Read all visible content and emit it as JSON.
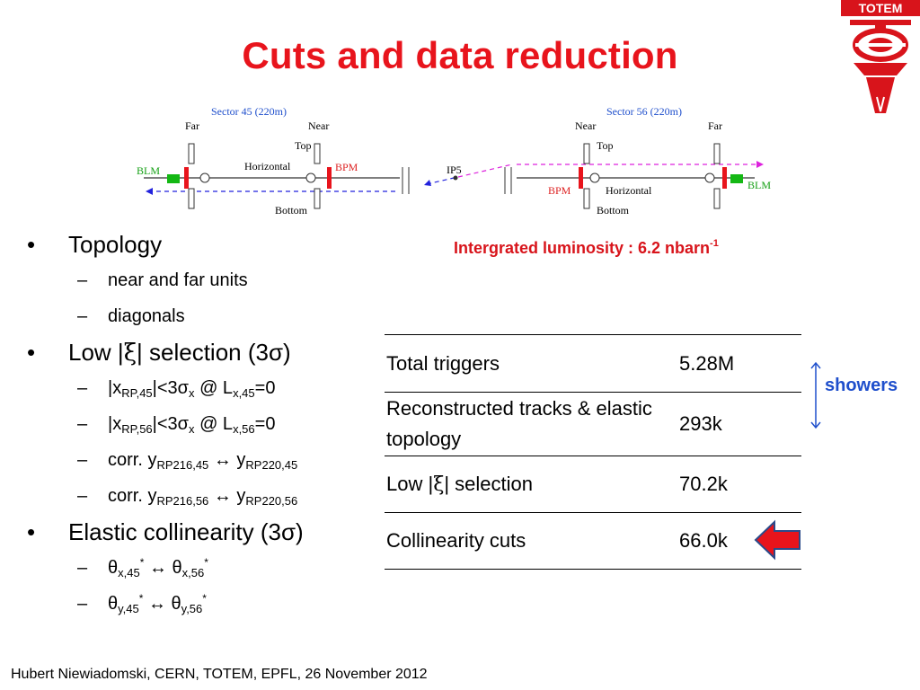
{
  "slide": {
    "title": "Cuts and data reduction",
    "logo_text": "TOTEM",
    "luminosity": {
      "label": "Intergrated luminosity : 6.2 nbarn",
      "exp": "-1"
    },
    "footer": "Hubert Niewiadomski, CERN, TOTEM, EPFL, 26 November 2012",
    "showers_label": "showers"
  },
  "diagram": {
    "sector45": "Sector 45 (220m)",
    "sector56": "Sector 56 (220m)",
    "far": "Far",
    "near": "Near",
    "top": "Top",
    "bottom": "Bottom",
    "horizontal": "Horizontal",
    "bpm": "BPM",
    "blm": "BLM",
    "ip5": "IP5"
  },
  "bullets": {
    "topology": "Topology",
    "near_far": "near and far units",
    "diagonals": "diagonals",
    "low_xi_a": "Low |",
    "xi": "ξ",
    "low_xi_b": "| selection (3σ)",
    "x45_a": "|x",
    "x45_sub": "RP,45",
    "x45_b": "|<3σ",
    "x45_sx": "x",
    "x45_c": " @ L",
    "x45_lsub": "x,45",
    "x45_d": "=0",
    "x56_a": "|x",
    "x56_sub": "RP,56",
    "x56_b": "|<3σ",
    "x56_sx": "x",
    "x56_c": " @ L",
    "x56_lsub": "x,56",
    "x56_d": "=0",
    "corr": "corr. y",
    "rp216_45": "RP216,45",
    "rp220_45": "RP220,45",
    "rp216_56": "RP216,56",
    "rp220_56": "RP220,56",
    "arrow": "↔",
    "y": "y",
    "elastic": "Elastic collinearity (3σ)",
    "theta": "θ",
    "tx45": "x,45",
    "tx56": "x,56",
    "ty45": "y,45",
    "ty56": "y,56",
    "star": "*"
  },
  "table": {
    "rows": [
      {
        "label": "Total triggers",
        "value": "5.28M"
      },
      {
        "label": "Reconstructed tracks & elastic topology",
        "value": "293k"
      },
      {
        "label_a": "Low |",
        "label_xi": "ξ",
        "label_b": "| selection",
        "value": "70.2k"
      },
      {
        "label": "Collinearity cuts",
        "value": "66.0k"
      }
    ]
  },
  "colors": {
    "title": "#e8141c",
    "showers": "#1f4fcc",
    "arrow": "#e8141c",
    "blm": "#14b814"
  },
  "icons": [
    "totem-logo-icon",
    "double-arrow-icon",
    "red-left-arrow-icon"
  ]
}
